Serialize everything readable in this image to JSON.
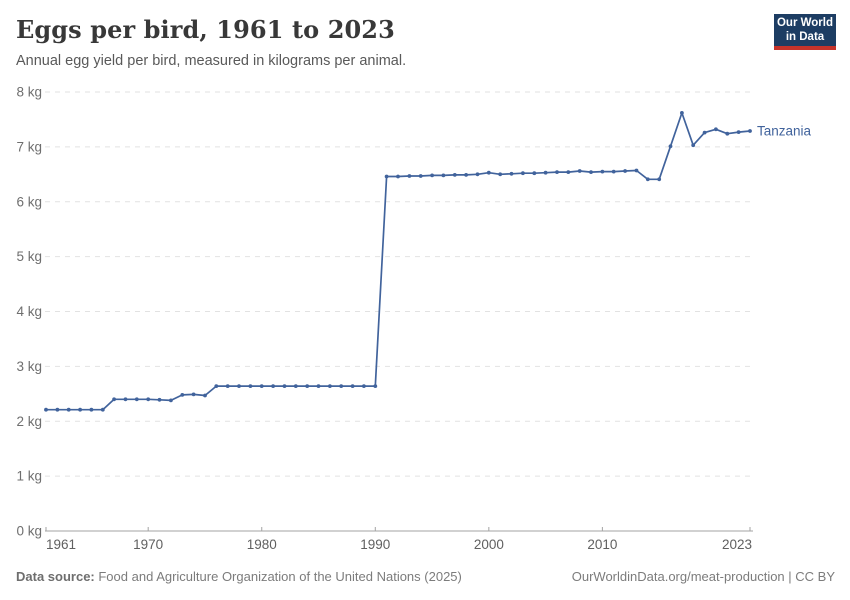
{
  "header": {
    "title": "Eggs per bird, 1961 to 2023",
    "subtitle": "Annual egg yield per bird, measured in kilograms per animal.",
    "logo": {
      "line1": "Our World",
      "line2": "in Data",
      "bg_color": "#1d3d63",
      "accent_color": "#c5332a"
    }
  },
  "chart_data": {
    "type": "line",
    "title": "Eggs per bird, 1961 to 2023",
    "xlabel": "",
    "ylabel": "",
    "unit": "kg",
    "grid": "horizontal-dashed",
    "legend_position": "end-of-line-label",
    "xlim": [
      1961,
      2023
    ],
    "ylim": [
      0,
      8
    ],
    "x_ticks": [
      1961,
      1970,
      1980,
      1990,
      2000,
      2010,
      2023
    ],
    "y_ticks": [
      0,
      1,
      2,
      3,
      4,
      5,
      6,
      7,
      8
    ],
    "y_tick_suffix": " kg",
    "series": [
      {
        "name": "Tanzania",
        "color": "#41639c",
        "x": [
          1961,
          1962,
          1963,
          1964,
          1965,
          1966,
          1967,
          1968,
          1969,
          1970,
          1971,
          1972,
          1973,
          1974,
          1975,
          1976,
          1977,
          1978,
          1979,
          1980,
          1981,
          1982,
          1983,
          1984,
          1985,
          1986,
          1987,
          1988,
          1989,
          1990,
          1991,
          1992,
          1993,
          1994,
          1995,
          1996,
          1997,
          1998,
          1999,
          2000,
          2001,
          2002,
          2003,
          2004,
          2005,
          2006,
          2007,
          2008,
          2009,
          2010,
          2011,
          2012,
          2013,
          2014,
          2015,
          2016,
          2017,
          2018,
          2019,
          2020,
          2021,
          2022,
          2023
        ],
        "values": [
          2.21,
          2.21,
          2.21,
          2.21,
          2.21,
          2.21,
          2.4,
          2.4,
          2.4,
          2.4,
          2.39,
          2.38,
          2.48,
          2.49,
          2.47,
          2.64,
          2.64,
          2.64,
          2.64,
          2.64,
          2.64,
          2.64,
          2.64,
          2.64,
          2.64,
          2.64,
          2.64,
          2.64,
          2.64,
          2.64,
          6.46,
          6.46,
          6.47,
          6.47,
          6.48,
          6.48,
          6.49,
          6.49,
          6.5,
          6.53,
          6.5,
          6.51,
          6.52,
          6.52,
          6.53,
          6.54,
          6.54,
          6.56,
          6.54,
          6.55,
          6.55,
          6.56,
          6.57,
          6.41,
          6.41,
          7.01,
          7.62,
          7.03,
          7.26,
          7.32,
          7.24,
          7.27,
          7.29
        ]
      }
    ]
  },
  "footer": {
    "source_label": "Data source:",
    "source_text": " Food and Agriculture Organization of the United Nations (2025)",
    "credit": "OurWorldinData.org/meat-production | CC BY"
  }
}
